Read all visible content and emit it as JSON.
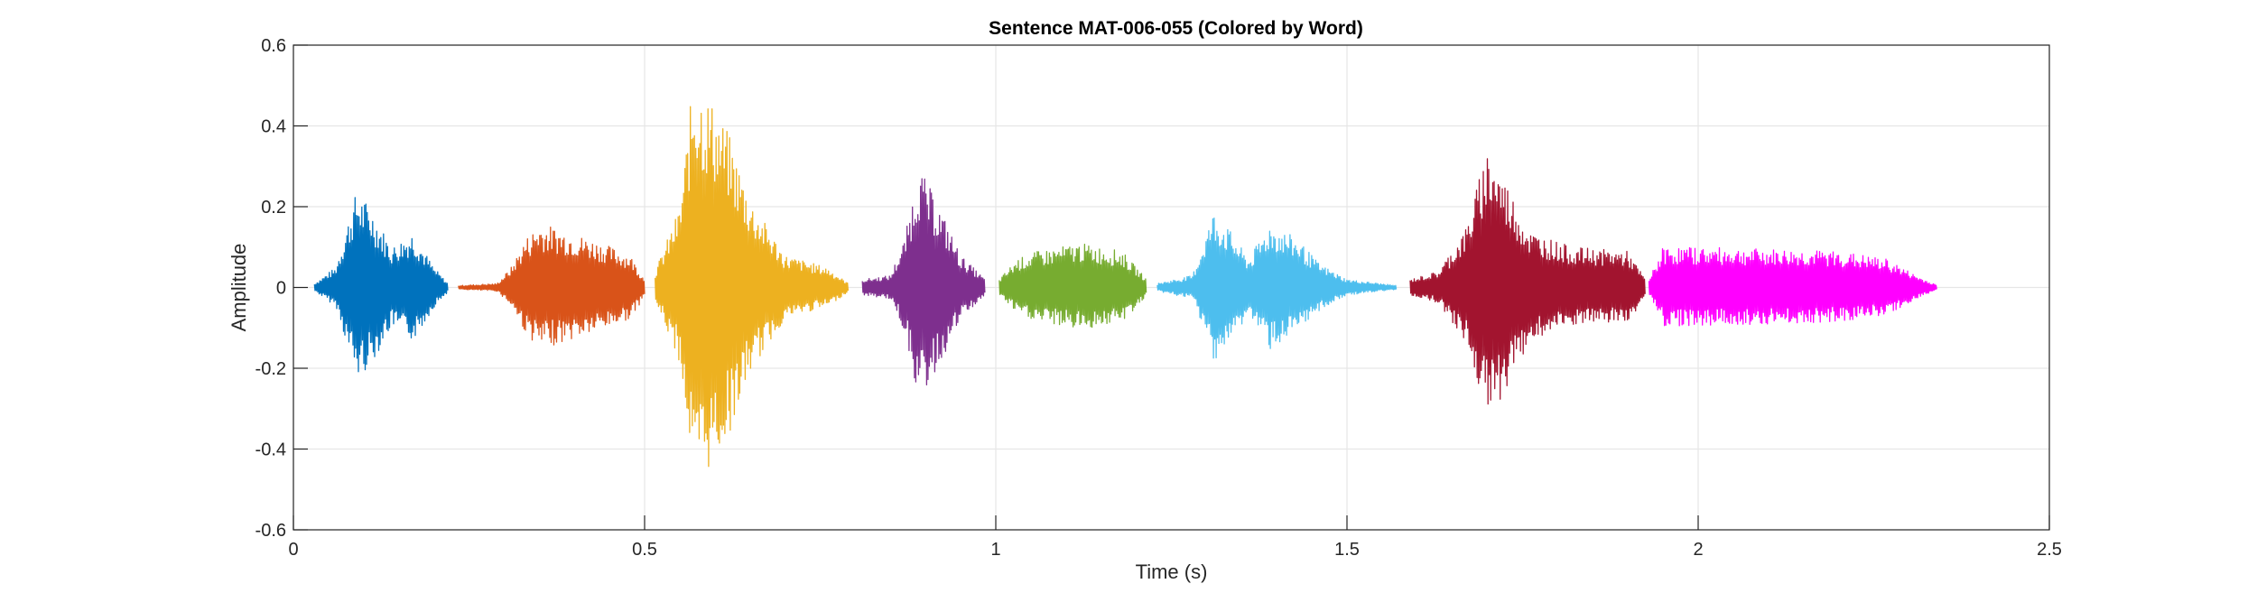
{
  "chart_data": {
    "type": "line",
    "title": "Sentence MAT-006-055 (Colored by Word)",
    "xlabel": "Time (s)",
    "ylabel": "Amplitude",
    "xlim": [
      0,
      2.5
    ],
    "ylim": [
      -0.6,
      0.6
    ],
    "xticks": [
      "0",
      "0.5",
      "1",
      "1.5",
      "2",
      "2.5"
    ],
    "yticks": [
      "0.6",
      "0.4",
      "0.2",
      "0",
      "-0.2",
      "-0.4",
      "-0.6"
    ],
    "grid": true,
    "series": [
      {
        "color": "#0072BD",
        "start": 0.03,
        "end": 0.22,
        "envelope": [
          [
            0.03,
            0.01
          ],
          [
            0.06,
            0.05
          ],
          [
            0.08,
            0.18
          ],
          [
            0.09,
            0.24
          ],
          [
            0.11,
            0.2
          ],
          [
            0.14,
            0.1
          ],
          [
            0.17,
            0.14
          ],
          [
            0.2,
            0.05
          ],
          [
            0.22,
            0.01
          ]
        ]
      },
      {
        "color": "#D95319",
        "start": 0.235,
        "end": 0.5,
        "envelope": [
          [
            0.235,
            0.005
          ],
          [
            0.29,
            0.01
          ],
          [
            0.31,
            0.05
          ],
          [
            0.33,
            0.12
          ],
          [
            0.35,
            0.16
          ],
          [
            0.39,
            0.14
          ],
          [
            0.44,
            0.11
          ],
          [
            0.48,
            0.08
          ],
          [
            0.5,
            0.02
          ]
        ]
      },
      {
        "color": "#EDB120",
        "start": 0.515,
        "end": 0.79,
        "envelope": [
          [
            0.515,
            0.04
          ],
          [
            0.55,
            0.2
          ],
          [
            0.57,
            0.53
          ],
          [
            0.6,
            0.45
          ],
          [
            0.62,
            0.38
          ],
          [
            0.65,
            0.22
          ],
          [
            0.7,
            0.08
          ],
          [
            0.76,
            0.05
          ],
          [
            0.79,
            0.01
          ]
        ]
      },
      {
        "color": "#7E2F8E",
        "start": 0.81,
        "end": 0.985,
        "envelope": [
          [
            0.81,
            0.02
          ],
          [
            0.85,
            0.03
          ],
          [
            0.87,
            0.12
          ],
          [
            0.89,
            0.3
          ],
          [
            0.92,
            0.2
          ],
          [
            0.95,
            0.08
          ],
          [
            0.985,
            0.02
          ]
        ]
      },
      {
        "color": "#77AC30",
        "start": 1.005,
        "end": 1.215,
        "envelope": [
          [
            1.005,
            0.02
          ],
          [
            1.03,
            0.07
          ],
          [
            1.06,
            0.09
          ],
          [
            1.12,
            0.11
          ],
          [
            1.18,
            0.09
          ],
          [
            1.215,
            0.02
          ]
        ]
      },
      {
        "color": "#4DBEEE",
        "start": 1.23,
        "end": 1.57,
        "envelope": [
          [
            1.23,
            0.01
          ],
          [
            1.28,
            0.03
          ],
          [
            1.31,
            0.19
          ],
          [
            1.33,
            0.15
          ],
          [
            1.36,
            0.07
          ],
          [
            1.39,
            0.16
          ],
          [
            1.43,
            0.12
          ],
          [
            1.46,
            0.06
          ],
          [
            1.5,
            0.02
          ],
          [
            1.57,
            0.005
          ]
        ]
      },
      {
        "color": "#A2142F",
        "start": 1.59,
        "end": 1.925,
        "envelope": [
          [
            1.59,
            0.02
          ],
          [
            1.63,
            0.04
          ],
          [
            1.67,
            0.15
          ],
          [
            1.7,
            0.35
          ],
          [
            1.73,
            0.25
          ],
          [
            1.76,
            0.14
          ],
          [
            1.82,
            0.1
          ],
          [
            1.9,
            0.09
          ],
          [
            1.925,
            0.02
          ]
        ]
      },
      {
        "color": "#FF00FF",
        "start": 1.93,
        "end": 2.34,
        "envelope": [
          [
            1.93,
            0.02
          ],
          [
            1.95,
            0.1
          ],
          [
            2.0,
            0.1
          ],
          [
            2.1,
            0.095
          ],
          [
            2.2,
            0.09
          ],
          [
            2.27,
            0.07
          ],
          [
            2.31,
            0.03
          ],
          [
            2.34,
            0.005
          ]
        ]
      }
    ]
  }
}
